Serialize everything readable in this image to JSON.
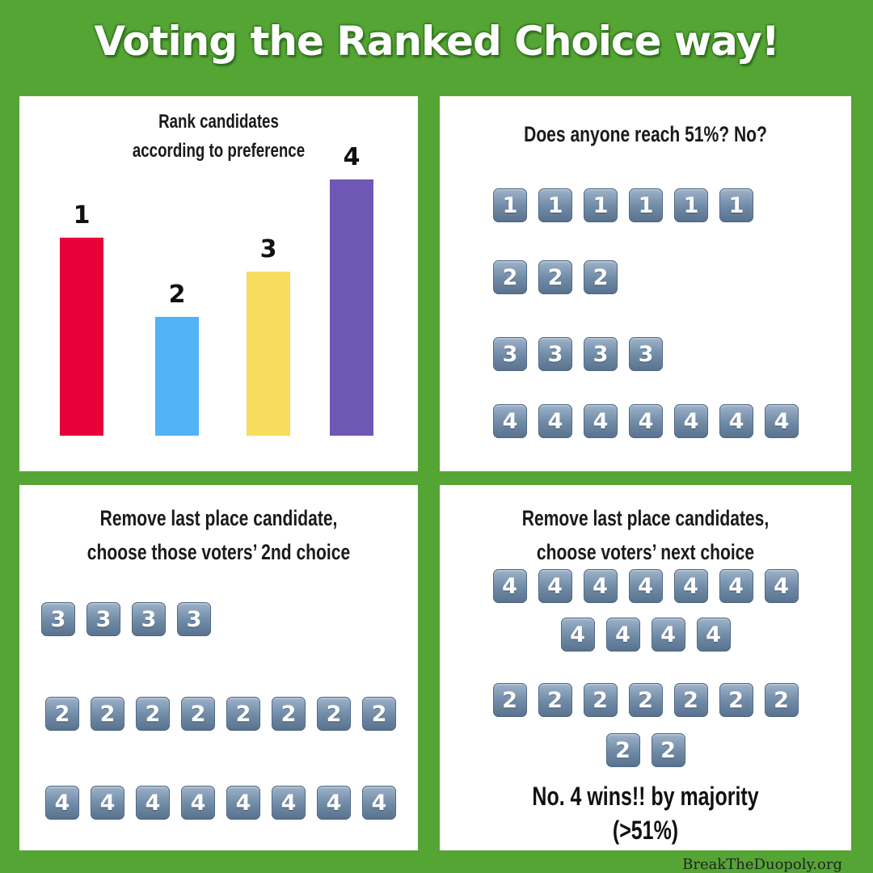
{
  "title": "Voting the Ranked Choice way!",
  "panel1": {
    "title_lines": [
      "Rank candidates",
      "according to preference"
    ],
    "chart_data": {
      "type": "bar",
      "categories": [
        "1",
        "2",
        "3",
        "4"
      ],
      "values": [
        245,
        147,
        203,
        317
      ],
      "colors": [
        "#e8003a",
        "#52b3f7",
        "#f7dc5e",
        "#6e57b5"
      ],
      "title": "Rank candidates according to preference"
    }
  },
  "panel2": {
    "title": "Does anyone reach 51%? No?",
    "rows": [
      {
        "number": "1",
        "count": 6
      },
      {
        "number": "2",
        "count": 3
      },
      {
        "number": "3",
        "count": 4
      },
      {
        "number": "4",
        "count": 7
      }
    ]
  },
  "panel3": {
    "title_lines": [
      "Remove last place candidate,",
      "choose those voters’ 2nd choice"
    ],
    "rows": [
      {
        "number": "3",
        "count": 4
      },
      {
        "number": "2",
        "count": 8
      },
      {
        "number": "4",
        "count": 8
      }
    ]
  },
  "panel4": {
    "title_lines": [
      "Remove last place candidates,",
      "choose voters’ next choice"
    ],
    "rows": [
      {
        "number": "4",
        "count": 7
      },
      {
        "number": "4",
        "count": 4
      },
      {
        "number": "2",
        "count": 7
      },
      {
        "number": "2",
        "count": 2
      }
    ],
    "result_lines": [
      "No. 4 wins!! by majority",
      "(>51%)"
    ]
  },
  "footer": {
    "site": "BreakTheDuopoly.org"
  }
}
